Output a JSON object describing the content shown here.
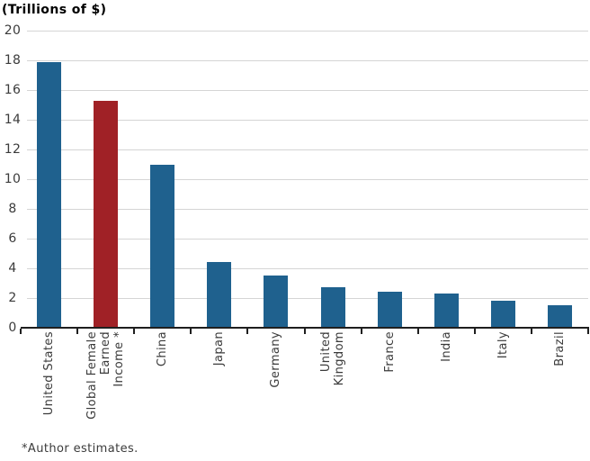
{
  "chart_data": {
    "type": "bar",
    "title": "(Trillions of $)",
    "footnote": "*Author estimates.",
    "categories": [
      "United States",
      "Global Female\nEarned\nIncome *",
      "China",
      "Japan",
      "Germany",
      "United\nKingdom",
      "France",
      "India",
      "Italy",
      "Brazil"
    ],
    "values": [
      17.9,
      15.3,
      11.0,
      4.4,
      3.5,
      2.7,
      2.4,
      2.3,
      1.8,
      1.5
    ],
    "highlight_index": 1,
    "highlight_category": "Global Female Earned Income *",
    "ylim": [
      0,
      20
    ],
    "ytick_step": 2,
    "grid": true,
    "legend": false,
    "colors": {
      "bar": "#1F618E",
      "highlight_bar": "#A02126",
      "gridline": "#D5D5D5",
      "axis": "#1F1F1F",
      "label_text": "#3B3B3B",
      "title_text": "#000000"
    }
  }
}
